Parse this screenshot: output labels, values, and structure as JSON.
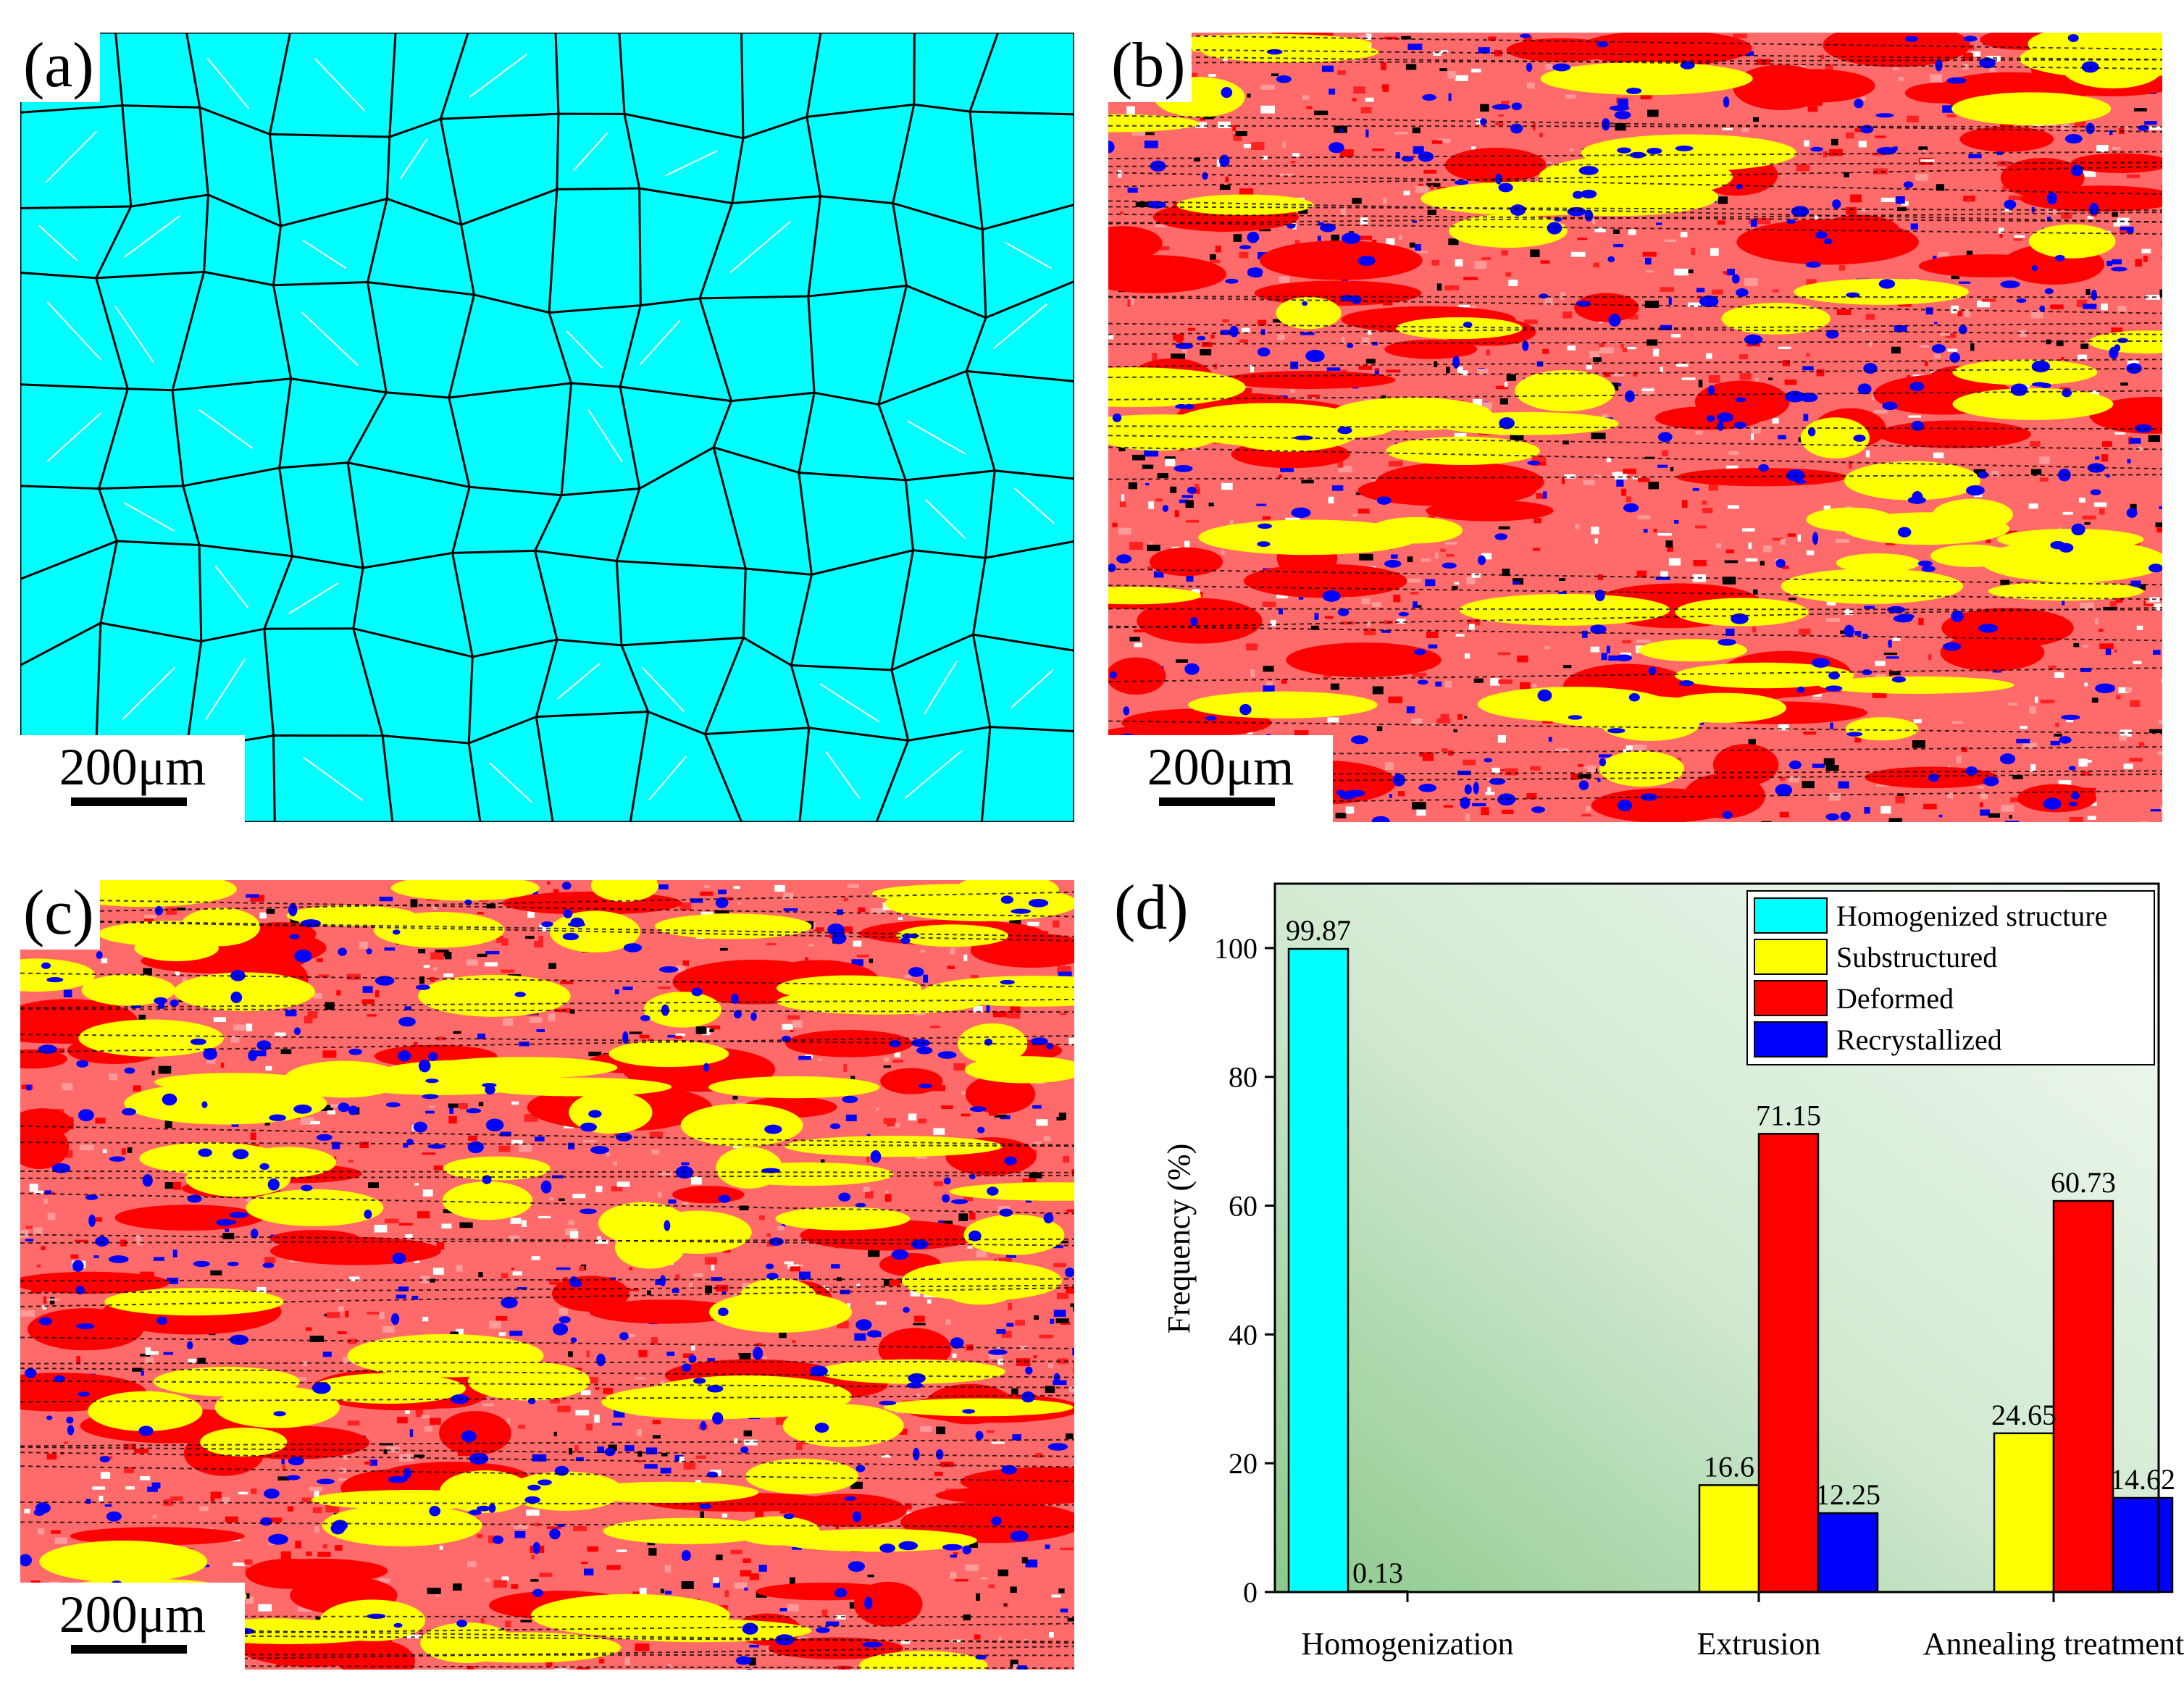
{
  "panels": {
    "a": {
      "label": "(a)",
      "scale": "200μm",
      "phase_color": "#00ffff"
    },
    "b": {
      "label": "(b)",
      "scale": "200μm"
    },
    "c": {
      "label": "(c)",
      "scale": "200μm"
    },
    "d": {
      "label": "(d)"
    }
  },
  "colors": {
    "homogenized": "#00ffff",
    "substructured": "#ffff00",
    "deformed": "#ff0000",
    "recrystallized": "#0000ff",
    "boundary_black": "#000000",
    "boundary_white": "#ffffff"
  },
  "chart_data": {
    "type": "bar",
    "title": "",
    "xlabel": "",
    "ylabel": "Frequency (%)",
    "ylim": [
      0,
      110
    ],
    "yticks": [
      0,
      20,
      40,
      60,
      80,
      100
    ],
    "categories": [
      "Homogenization",
      "Extrusion",
      "Annealing treatment"
    ],
    "legend_position": "top-right",
    "series": [
      {
        "name": "Homogenized structure",
        "color": "#00ffff",
        "values": [
          99.87,
          null,
          null
        ],
        "labels": [
          "99.87",
          "",
          ""
        ]
      },
      {
        "name": "Substructured",
        "color": "#ffff00",
        "values": [
          0.13,
          16.6,
          24.65
        ],
        "labels": [
          "0.13",
          "16.6",
          "24.65"
        ]
      },
      {
        "name": "Deformed",
        "color": "#ff0000",
        "values": [
          null,
          71.15,
          60.73
        ],
        "labels": [
          "",
          "71.15",
          "60.73"
        ]
      },
      {
        "name": "Recrystallized",
        "color": "#0000ff",
        "values": [
          null,
          12.25,
          14.62
        ],
        "labels": [
          "",
          "12.25",
          "14.62"
        ]
      }
    ]
  }
}
